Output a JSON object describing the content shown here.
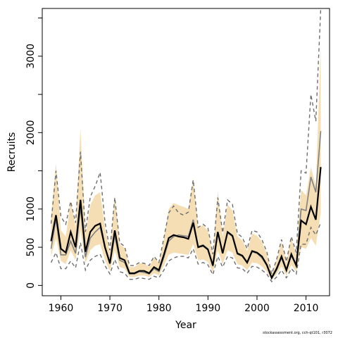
{
  "chart_data": {
    "type": "line",
    "xlabel": "Year",
    "ylabel": "Recruits",
    "xlim": [
      1956.2,
      2014.8
    ],
    "ylim": [
      -135,
      3625
    ],
    "xticks": [
      1960,
      1970,
      1980,
      1990,
      2000,
      2010
    ],
    "yticks": [
      0,
      500,
      1000,
      2000,
      3000
    ],
    "yticks_minor": [
      0,
      500,
      1000,
      1500,
      2000,
      2500,
      3000,
      3500
    ],
    "grid": false,
    "legend": "none",
    "colors": {
      "ci_band": "#f5deb3",
      "main_line": "#000000",
      "alt_line": "#808080",
      "alt_ci": "#6e6e6e"
    },
    "x": [
      1958,
      1959,
      1960,
      1961,
      1962,
      1963,
      1964,
      1965,
      1966,
      1967,
      1968,
      1969,
      1970,
      1971,
      1972,
      1973,
      1974,
      1975,
      1976,
      1977,
      1978,
      1979,
      1980,
      1981,
      1982,
      1983,
      1984,
      1985,
      1986,
      1987,
      1988,
      1989,
      1990,
      1991,
      1992,
      1993,
      1994,
      1995,
      1996,
      1997,
      1998,
      1999,
      2000,
      2001,
      2002,
      2003,
      2004,
      2005,
      2006,
      2007,
      2008,
      2009,
      2010,
      2011,
      2012,
      2013
    ],
    "series": [
      {
        "role": "estimate",
        "values": [
          580,
          920,
          480,
          430,
          700,
          500,
          1120,
          440,
          700,
          780,
          810,
          500,
          290,
          720,
          360,
          330,
          160,
          160,
          190,
          190,
          160,
          240,
          200,
          400,
          620,
          660,
          640,
          630,
          610,
          820,
          500,
          520,
          470,
          260,
          700,
          420,
          700,
          650,
          420,
          390,
          300,
          450,
          430,
          380,
          270,
          100,
          220,
          380,
          200,
          410,
          260,
          850,
          800,
          1030,
          860,
          1550
        ],
        "lower": [
          380,
          620,
          320,
          280,
          460,
          330,
          720,
          290,
          460,
          520,
          540,
          330,
          190,
          460,
          240,
          220,
          110,
          110,
          130,
          130,
          110,
          160,
          130,
          260,
          400,
          430,
          420,
          410,
          400,
          540,
          330,
          340,
          310,
          170,
          460,
          280,
          460,
          430,
          280,
          260,
          200,
          300,
          290,
          250,
          180,
          70,
          150,
          250,
          130,
          270,
          180,
          500,
          480,
          620,
          520,
          950
        ],
        "upper": [
          880,
          1600,
          720,
          640,
          1100,
          760,
          2050,
          660,
          1050,
          1180,
          1220,
          750,
          430,
          1180,
          540,
          490,
          240,
          240,
          290,
          290,
          240,
          360,
          300,
          600,
          1000,
          1080,
          1050,
          1030,
          1000,
          1400,
          760,
          790,
          710,
          390,
          1230,
          640,
          1060,
          980,
          640,
          590,
          450,
          680,
          650,
          570,
          410,
          150,
          330,
          570,
          300,
          620,
          400,
          1250,
          1180,
          1550,
          1300,
          3150
        ]
      },
      {
        "role": "alternate",
        "values": [
          480,
          870,
          400,
          400,
          580,
          420,
          1020,
          370,
          620,
          700,
          760,
          490,
          280,
          650,
          330,
          300,
          150,
          150,
          180,
          170,
          150,
          220,
          180,
          370,
          580,
          640,
          660,
          650,
          640,
          860,
          510,
          530,
          480,
          250,
          700,
          430,
          690,
          640,
          410,
          380,
          290,
          440,
          420,
          360,
          260,
          90,
          200,
          360,
          190,
          390,
          260,
          1000,
          980,
          1420,
          1220,
          2020
        ],
        "lower": [
          300,
          430,
          220,
          220,
          320,
          230,
          560,
          200,
          330,
          380,
          410,
          260,
          150,
          340,
          180,
          160,
          80,
          80,
          100,
          90,
          80,
          120,
          100,
          200,
          320,
          360,
          380,
          380,
          360,
          480,
          280,
          300,
          270,
          140,
          380,
          240,
          380,
          360,
          230,
          220,
          160,
          250,
          240,
          200,
          150,
          50,
          110,
          200,
          100,
          220,
          150,
          540,
          540,
          760,
          660,
          820
        ],
        "upper": [
          810,
          1500,
          900,
          800,
          1100,
          820,
          1750,
          700,
          1160,
          1300,
          1480,
          830,
          460,
          1150,
          560,
          510,
          260,
          260,
          300,
          290,
          260,
          380,
          300,
          620,
          950,
          1040,
          950,
          920,
          960,
          1380,
          760,
          800,
          750,
          410,
          1150,
          690,
          1120,
          1060,
          680,
          630,
          480,
          720,
          700,
          600,
          440,
          150,
          340,
          600,
          310,
          640,
          430,
          1500,
          1470,
          2500,
          2150,
          3620
        ]
      }
    ]
  },
  "footnote": "stockassessment.org, cch-qt101, r3072"
}
